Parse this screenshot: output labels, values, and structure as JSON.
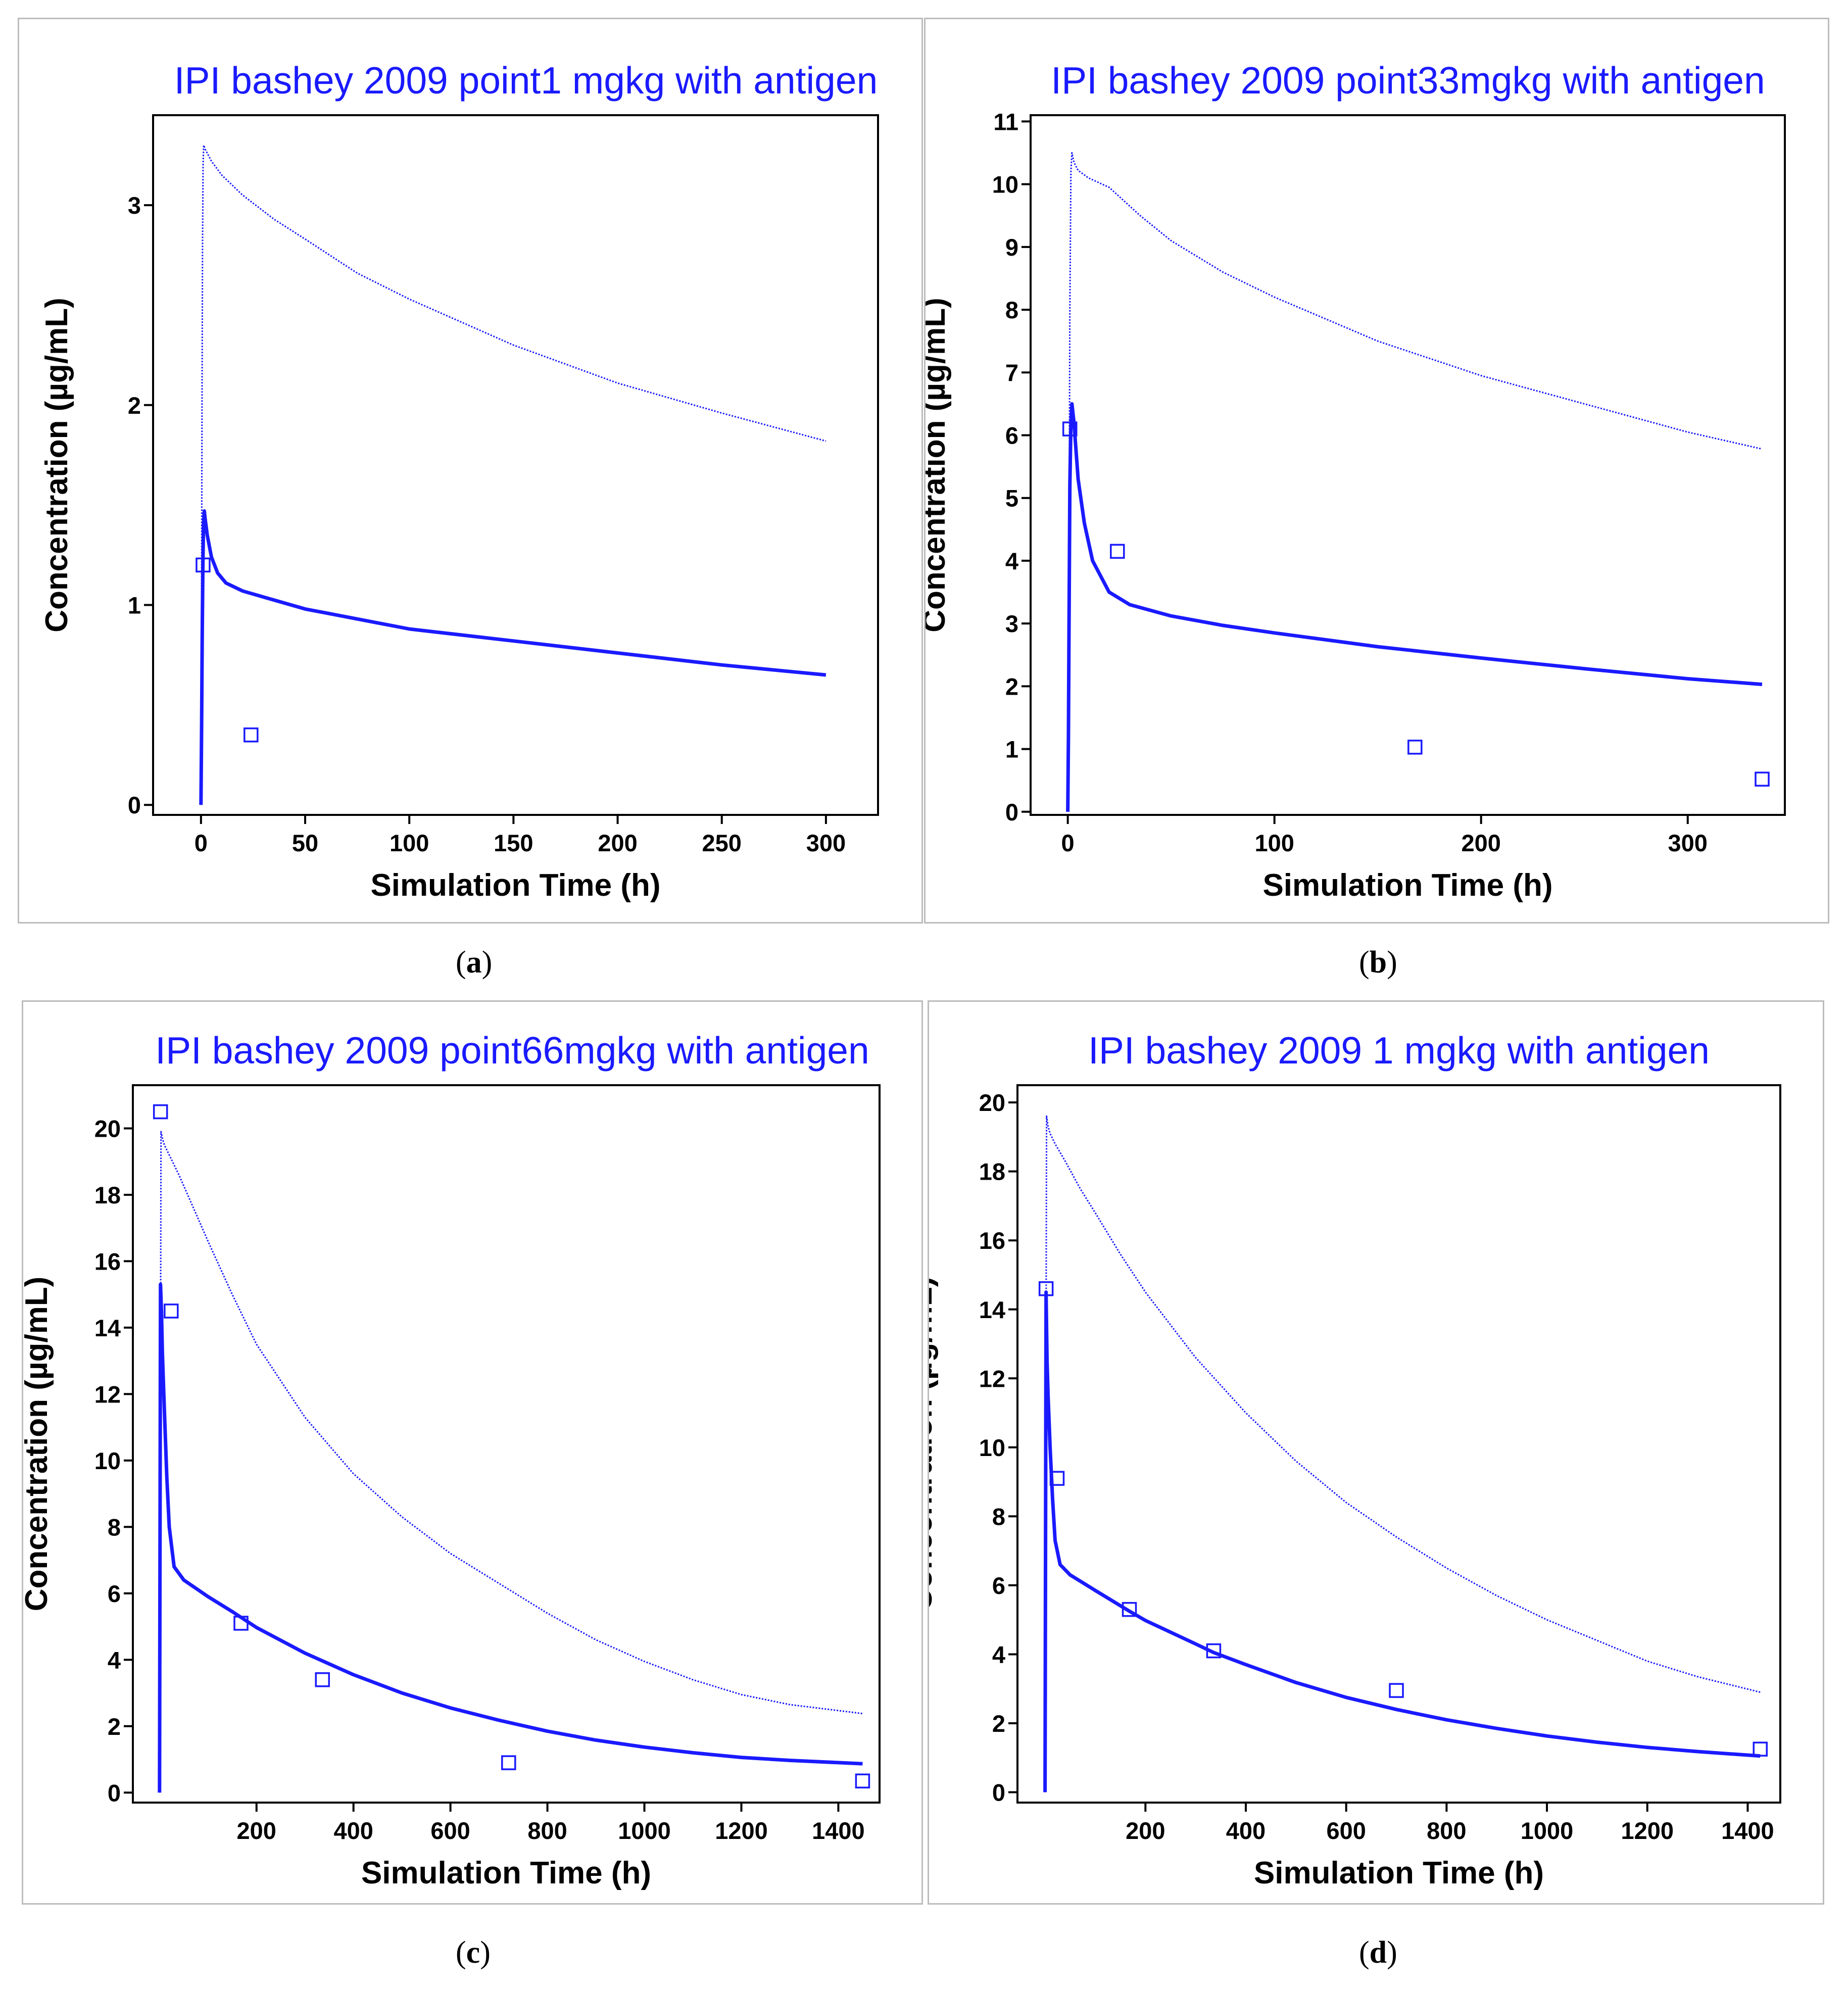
{
  "figure": {
    "captions": [
      "a",
      "b",
      "c",
      "d"
    ],
    "colors": {
      "series": "#1a1aff",
      "panel_border": "#bcbcbc",
      "axis": "#000000"
    }
  },
  "chart_data": [
    {
      "type": "line",
      "panel": "a",
      "title": "IPI bashey 2009 point1 mgkg with antigen",
      "xlabel": "Simulation Time (h)",
      "ylabel": "Concentration (µg/mL)",
      "xlim": [
        -23,
        325
      ],
      "ylim": [
        -0.05,
        3.45
      ],
      "xticks": [
        0,
        50,
        100,
        150,
        200,
        250,
        300
      ],
      "yticks": [
        0,
        1,
        2,
        3
      ],
      "series": [
        {
          "name": "simulated (solid)",
          "style": "solid",
          "x": [
            0,
            0.3,
            0.6,
            0.9,
            1.2,
            1.6,
            2,
            3,
            5,
            8,
            12,
            20,
            30,
            50,
            75,
            100,
            150,
            200,
            250,
            300
          ],
          "y": [
            0,
            0.4,
            0.85,
            1.2,
            1.4,
            1.47,
            1.43,
            1.35,
            1.24,
            1.16,
            1.11,
            1.07,
            1.04,
            0.98,
            0.93,
            0.88,
            0.82,
            0.76,
            0.7,
            0.65
          ]
        },
        {
          "name": "simulated (dotted)",
          "style": "dotted",
          "x": [
            0,
            0.25,
            0.5,
            0.75,
            1,
            1.3,
            2,
            5,
            10,
            20,
            35,
            50,
            75,
            100,
            150,
            200,
            250,
            300
          ],
          "y": [
            0,
            1.0,
            2.0,
            2.8,
            3.2,
            3.3,
            3.28,
            3.22,
            3.15,
            3.05,
            2.93,
            2.83,
            2.66,
            2.53,
            2.3,
            2.11,
            1.96,
            1.82
          ]
        },
        {
          "name": "observed",
          "style": "markers",
          "x": [
            1,
            24
          ],
          "y": [
            1.2,
            0.35
          ]
        }
      ]
    },
    {
      "type": "line",
      "panel": "b",
      "title": "IPI bashey 2009 point33mgkg with antigen",
      "xlabel": "Simulation Time (h)",
      "ylabel": "Concentration (µg/mL)",
      "xlim": [
        -18,
        347
      ],
      "ylim": [
        -0.05,
        11.1
      ],
      "xticks": [
        0,
        100,
        200,
        300
      ],
      "yticks": [
        0,
        1,
        2,
        3,
        4,
        5,
        6,
        7,
        8,
        9,
        10,
        11
      ],
      "series": [
        {
          "name": "simulated (solid)",
          "style": "solid",
          "x": [
            0,
            0.3,
            0.6,
            1,
            1.5,
            2,
            3,
            5,
            8,
            12,
            20,
            30,
            50,
            75,
            100,
            150,
            200,
            250,
            300,
            336
          ],
          "y": [
            0,
            1.2,
            3.0,
            5.2,
            6.2,
            6.5,
            6.2,
            5.3,
            4.6,
            4.0,
            3.5,
            3.3,
            3.12,
            2.97,
            2.85,
            2.63,
            2.45,
            2.28,
            2.12,
            2.03
          ]
        },
        {
          "name": "simulated (dotted)",
          "style": "dotted",
          "x": [
            0,
            0.3,
            0.7,
            1,
            1.5,
            2,
            3,
            5,
            10,
            20,
            35,
            50,
            75,
            100,
            150,
            200,
            250,
            300,
            336
          ],
          "y": [
            0,
            2.0,
            5.0,
            8.0,
            10.2,
            10.5,
            10.35,
            10.22,
            10.1,
            9.95,
            9.5,
            9.1,
            8.6,
            8.2,
            7.5,
            6.95,
            6.5,
            6.05,
            5.78
          ]
        },
        {
          "name": "observed",
          "style": "markers",
          "x": [
            1,
            24,
            168,
            336
          ],
          "y": [
            6.1,
            4.15,
            1.03,
            0.52
          ]
        }
      ]
    },
    {
      "type": "line",
      "panel": "c",
      "title": "IPI bashey 2009 point66mgkg with antigen",
      "xlabel": "Simulation Time (h)",
      "ylabel": "Concentration (µg/mL)",
      "xlim": [
        -55,
        1485
      ],
      "ylim": [
        -0.3,
        21.3
      ],
      "xticks": [
        200,
        400,
        600,
        800,
        1000,
        1200,
        1400
      ],
      "yticks": [
        0,
        2,
        4,
        6,
        8,
        10,
        12,
        14,
        16,
        18,
        20
      ],
      "series": [
        {
          "name": "simulated (solid)",
          "style": "solid",
          "x": [
            0,
            2,
            4,
            6,
            10,
            15,
            20,
            30,
            50,
            100,
            150,
            200,
            300,
            400,
            500,
            600,
            700,
            800,
            900,
            1000,
            1100,
            1200,
            1300,
            1450
          ],
          "y": [
            0,
            15.3,
            14.5,
            13.2,
            11.5,
            9.5,
            8.0,
            6.8,
            6.4,
            5.9,
            5.45,
            4.97,
            4.2,
            3.55,
            3.0,
            2.55,
            2.18,
            1.85,
            1.58,
            1.37,
            1.2,
            1.06,
            0.97,
            0.87
          ]
        },
        {
          "name": "simulated (dotted)",
          "style": "dotted",
          "x": [
            0,
            3,
            6,
            10,
            20,
            40,
            70,
            100,
            150,
            200,
            300,
            400,
            500,
            600,
            700,
            800,
            900,
            1000,
            1100,
            1200,
            1300,
            1450
          ],
          "y": [
            0,
            19.9,
            19.7,
            19.5,
            19.2,
            18.6,
            17.6,
            16.6,
            15.0,
            13.5,
            11.3,
            9.6,
            8.3,
            7.2,
            6.3,
            5.4,
            4.6,
            3.95,
            3.4,
            2.95,
            2.65,
            2.38
          ]
        },
        {
          "name": "observed",
          "style": "markers",
          "x": [
            2,
            24,
            168,
            336,
            720,
            1450
          ],
          "y": [
            20.5,
            14.5,
            5.1,
            3.4,
            0.9,
            0.35
          ]
        }
      ]
    },
    {
      "type": "line",
      "panel": "d",
      "title": "IPI bashey 2009 1 mgkg with antigen",
      "xlabel": "Simulation Time (h)",
      "ylabel": "Concentration (µg/mL)",
      "xlim": [
        -55,
        1465
      ],
      "ylim": [
        -0.3,
        20.5
      ],
      "xticks": [
        200,
        400,
        600,
        800,
        1000,
        1200,
        1400
      ],
      "yticks": [
        0,
        2,
        4,
        6,
        8,
        10,
        12,
        14,
        16,
        18,
        20
      ],
      "series": [
        {
          "name": "simulated (solid)",
          "style": "solid",
          "x": [
            0,
            2,
            4,
            6,
            10,
            15,
            20,
            30,
            50,
            100,
            168,
            200,
            300,
            336,
            400,
            500,
            600,
            700,
            800,
            900,
            1000,
            1100,
            1200,
            1300,
            1425
          ],
          "y": [
            0,
            14.5,
            12.5,
            11.5,
            10.0,
            8.5,
            7.3,
            6.6,
            6.3,
            5.85,
            5.25,
            4.98,
            4.3,
            4.05,
            3.7,
            3.18,
            2.75,
            2.4,
            2.1,
            1.85,
            1.63,
            1.45,
            1.3,
            1.18,
            1.05
          ]
        },
        {
          "name": "simulated (dotted)",
          "style": "dotted",
          "x": [
            0,
            3,
            6,
            10,
            20,
            40,
            70,
            100,
            150,
            200,
            300,
            400,
            500,
            600,
            700,
            800,
            900,
            1000,
            1100,
            1200,
            1300,
            1425
          ],
          "y": [
            0,
            19.6,
            19.3,
            19.1,
            18.8,
            18.3,
            17.5,
            16.8,
            15.6,
            14.5,
            12.6,
            11.0,
            9.6,
            8.4,
            7.4,
            6.5,
            5.7,
            5.0,
            4.4,
            3.8,
            3.35,
            2.9
          ]
        },
        {
          "name": "observed",
          "style": "markers",
          "x": [
            2,
            24,
            168,
            336,
            700,
            1425
          ],
          "y": [
            14.6,
            9.1,
            5.3,
            4.1,
            2.95,
            1.25
          ]
        }
      ]
    }
  ]
}
